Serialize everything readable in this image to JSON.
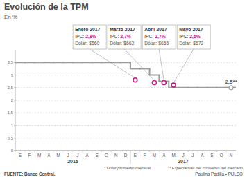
{
  "chart_data": {
    "type": "line",
    "title": "Evolución de la TPM",
    "subtitle": "En %",
    "categories": [
      "E",
      "F",
      "M",
      "A",
      "M",
      "J",
      "J",
      "A",
      "S",
      "O",
      "N",
      "D",
      "E",
      "F",
      "M",
      "A",
      "M",
      "J",
      "J",
      "A",
      "S",
      "O",
      "N"
    ],
    "years": [
      {
        "label": "2016",
        "months": 12
      },
      {
        "label": "2017",
        "months": 11
      }
    ],
    "series": [
      {
        "type": "line",
        "line_style": "step",
        "color": "#9a9a9a",
        "values": [
          3.5,
          3.5,
          3.5,
          3.5,
          3.5,
          3.5,
          3.5,
          3.5,
          3.5,
          3.5,
          3.5,
          3.5,
          3.25,
          3.25,
          3.0,
          2.75,
          2.5,
          2.5,
          2.5,
          2.5,
          2.5,
          2.5,
          2.5
        ]
      },
      {
        "type": "scatter",
        "marker": "circle",
        "color": "#c2187e",
        "values": [
          null,
          null,
          null,
          null,
          null,
          null,
          null,
          null,
          null,
          null,
          null,
          null,
          2.8,
          null,
          2.7,
          2.7,
          2.6,
          null,
          null,
          null,
          null,
          null,
          null
        ]
      },
      {
        "type": "scatter",
        "marker": "open-circle",
        "color": "#9a9a9a",
        "values": [
          null,
          null,
          null,
          null,
          null,
          null,
          null,
          null,
          null,
          null,
          null,
          null,
          null,
          null,
          null,
          null,
          null,
          null,
          null,
          null,
          null,
          null,
          2.5
        ],
        "value_labels": [
          null,
          null,
          null,
          null,
          null,
          null,
          null,
          null,
          null,
          null,
          null,
          null,
          null,
          null,
          null,
          null,
          null,
          null,
          null,
          null,
          null,
          null,
          "2,5**"
        ]
      }
    ],
    "ylim": [
      0,
      4
    ],
    "yticks": [
      0,
      {
        "value": 0.5,
        "label": "0,5"
      },
      1,
      {
        "value": 1.5,
        "label": "1,5"
      },
      2,
      {
        "value": 2.5,
        "label": "2,5"
      },
      3,
      {
        "value": 3.5,
        "label": "3,5"
      }
    ],
    "grid": true,
    "annotations": [
      {
        "title": "Enero 2017",
        "ipc_label": "IPC:",
        "ipc": "2,8%",
        "dolar": "Dólar: $660"
      },
      {
        "title": "Marzo 2017",
        "ipc_label": "IPC:",
        "ipc": "2,7%",
        "dolar": "Dólar: $662"
      },
      {
        "title": "Abril 2017",
        "ipc_label": "IPC:",
        "ipc": "2,7%",
        "dolar": "Dólar: $655"
      },
      {
        "title": "Mayo 2017",
        "ipc_label": "IPC:",
        "ipc": "2,6%",
        "dolar": "Dólar: $672"
      }
    ],
    "notes": [
      "* Dólar promedio mensual",
      "** Expectativas del consenso del mercado"
    ],
    "source": "FUENTE: Banco Central.",
    "credit": "Paulina Padilla • PULSO"
  }
}
